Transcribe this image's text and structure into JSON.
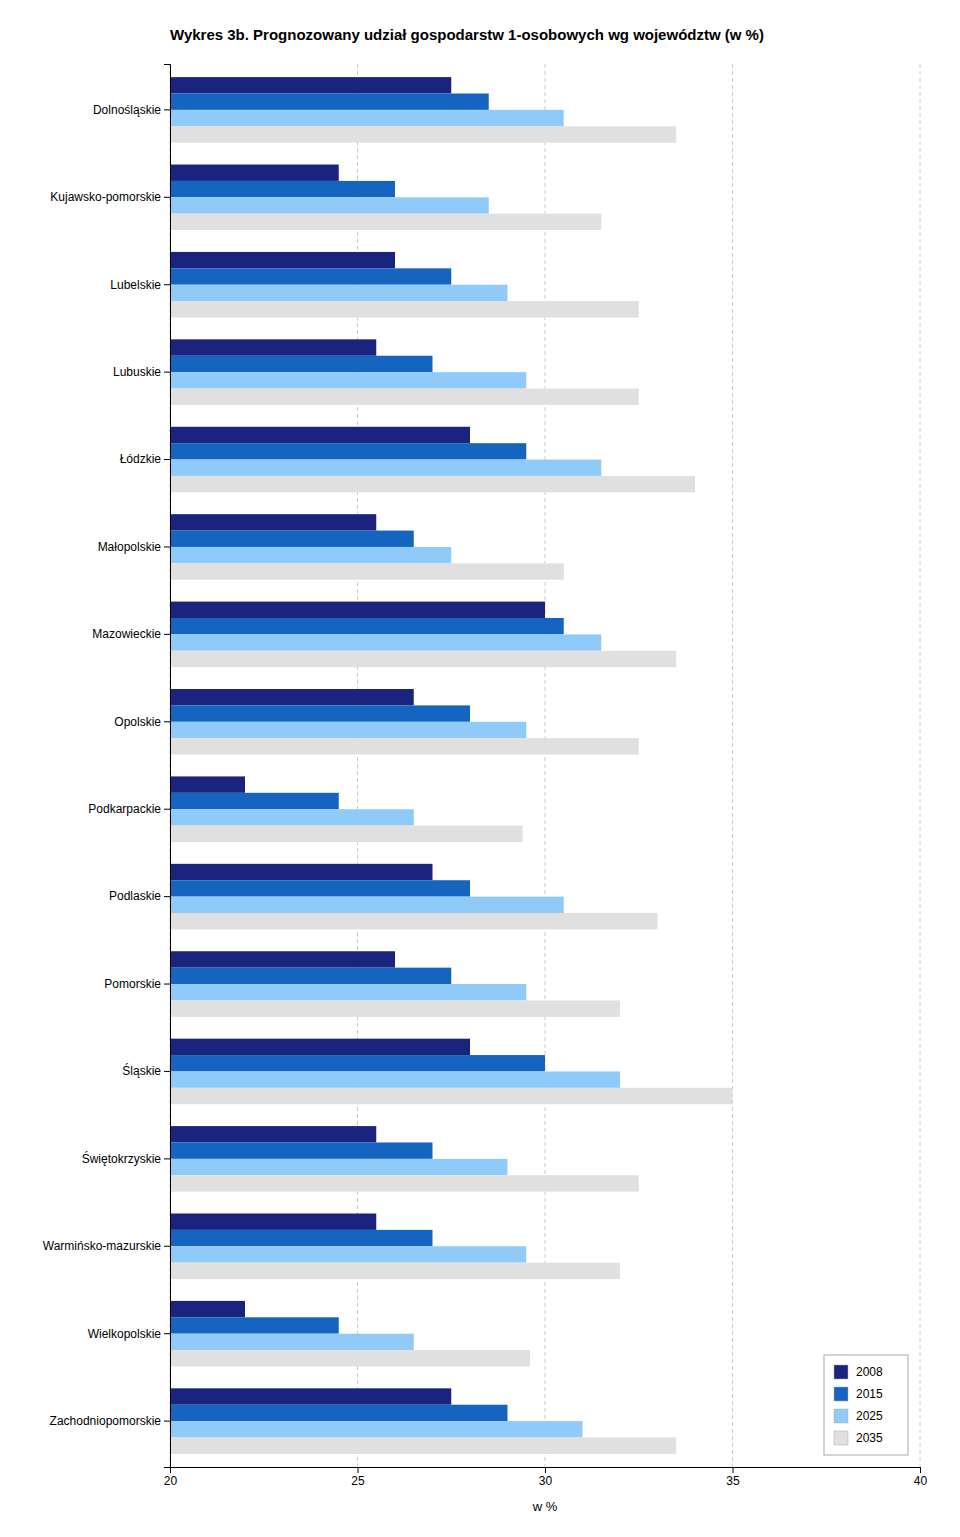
{
  "chart_data": {
    "type": "bar",
    "orientation": "horizontal",
    "title": "Wykres 3b. Prognozowany udział gospodarstw 1-osobowych wg województw (w %)",
    "categories": [
      "Dolnośląskie",
      "Kujawsko-pomorskie",
      "Lubelskie",
      "Lubuskie",
      "Łódzkie",
      "Małopolskie",
      "Mazowieckie",
      "Opolskie",
      "Podkarpackie",
      "Podlaskie",
      "Pomorskie",
      "Śląskie",
      "Świętokrzyskie",
      "Warmińsko-mazurskie",
      "Wielkopolskie",
      "Zachodniopomorskie"
    ],
    "series": [
      {
        "name": "2008",
        "color": "#1a237e",
        "values": [
          27.5,
          24.5,
          26.0,
          25.5,
          28.0,
          25.5,
          30.0,
          26.5,
          22.0,
          27.0,
          26.0,
          28.0,
          25.5,
          25.5,
          22.0,
          27.5
        ]
      },
      {
        "name": "2015",
        "color": "#1565c0",
        "values": [
          28.5,
          26.0,
          27.5,
          27.0,
          29.5,
          26.5,
          30.5,
          28.0,
          24.5,
          28.0,
          27.5,
          30.0,
          27.0,
          27.0,
          24.5,
          29.0
        ]
      },
      {
        "name": "2025",
        "color": "#90caf9",
        "values": [
          30.5,
          28.5,
          29.0,
          29.5,
          31.5,
          27.5,
          31.5,
          29.5,
          26.5,
          30.5,
          29.5,
          32.0,
          29.0,
          29.5,
          26.5,
          31.0
        ]
      },
      {
        "name": "2035",
        "color": "#e0e0e0",
        "values": [
          33.5,
          31.5,
          32.5,
          32.5,
          34.0,
          30.5,
          33.5,
          32.5,
          29.4,
          33.0,
          32.0,
          35.0,
          32.5,
          32.0,
          29.6,
          33.5
        ]
      }
    ],
    "xlim": [
      20,
      40
    ],
    "xticks": [
      20,
      25,
      30,
      35,
      40
    ],
    "xlabel": "w %",
    "grid": true,
    "legend": "lower right"
  }
}
